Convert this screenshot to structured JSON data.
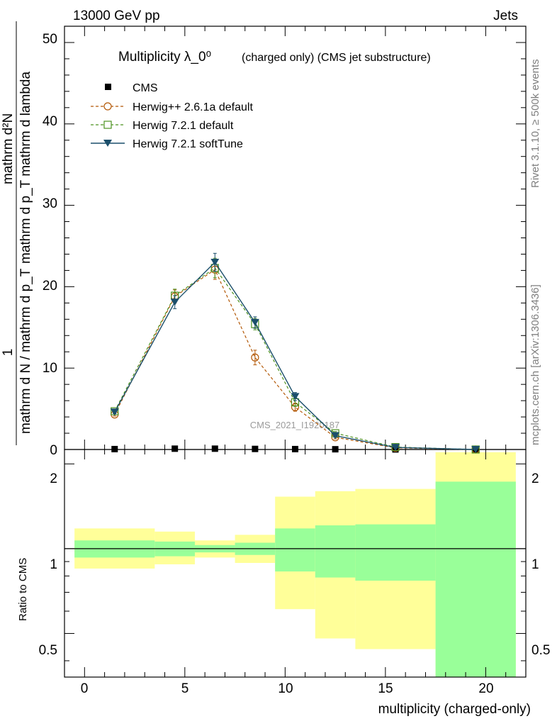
{
  "header": {
    "left_text": "13000 GeV pp",
    "right_text": "Jets"
  },
  "side_text": {
    "rivet": "Rivet 3.1.10, ≥ 500k events",
    "mcplots": "mcplots.cern.ch [arXiv:1306.3436]"
  },
  "watermark": "CMS_2021_I1920187",
  "colors": {
    "cms": "#000000",
    "herwigpp": "#b35806",
    "herwig721": "#4d9221",
    "softtune": "#1b4f6b",
    "band_inner": "#99ff99",
    "band_outer": "#ffff99"
  },
  "chart_data": [
    {
      "type": "line",
      "title": "Multiplicity λ_0⁰",
      "subtitle": "(charged only) (CMS jet substructure)",
      "ylabel_numerator": "1",
      "ylabel_denominator": "mathrm d N / mathrm d p_T",
      "ylabel_frac_numerator": "mathrm d²N",
      "ylabel_frac_denominator": "mathrm d p_T mathrm d lambda",
      "xlim": [
        -1,
        22
      ],
      "ylim": [
        0,
        52
      ],
      "yticks": [
        "10",
        "20",
        "30",
        "40",
        "50"
      ],
      "yticks_zero": "0",
      "x": [
        1.5,
        4.5,
        6.5,
        8.5,
        10.5,
        12.5,
        15.5,
        19.5
      ],
      "series": [
        {
          "name": "CMS",
          "marker": "square-filled",
          "style": "points",
          "y": [
            0.05,
            0.1,
            0.1,
            0.07,
            0.05,
            0.03,
            0.01,
            0.002
          ]
        },
        {
          "name": "Herwig++ 2.6.1a default",
          "marker": "circle-open",
          "style": "dashed",
          "y": [
            4.3,
            18.8,
            22.1,
            11.3,
            5.2,
            1.5,
            0.2,
            0.0
          ],
          "err": [
            0.2,
            0.8,
            1.2,
            0.9,
            0.5,
            0.2,
            0.05,
            0.0
          ]
        },
        {
          "name": "Herwig 7.2.1 default",
          "marker": "square-open",
          "style": "dashed",
          "y": [
            4.7,
            18.9,
            22.3,
            15.4,
            5.8,
            2.0,
            0.3,
            0.0
          ],
          "err": [
            0.2,
            0.8,
            1.2,
            0.7,
            0.5,
            0.2,
            0.05,
            0.0
          ]
        },
        {
          "name": "Herwig 7.2.1 softTune",
          "marker": "triangle-down-filled",
          "style": "solid",
          "y": [
            4.6,
            18.1,
            23.0,
            15.6,
            6.5,
            1.7,
            0.25,
            0.0
          ],
          "err": [
            0.2,
            0.8,
            1.1,
            0.7,
            0.5,
            0.2,
            0.05,
            0.0
          ]
        }
      ]
    },
    {
      "type": "area",
      "ylabel": "Ratio to CMS",
      "xlabel": "multiplicity (charged-only)",
      "xlim": [
        -1,
        22
      ],
      "ylim": [
        0.35,
        2.25
      ],
      "xticks": [
        "0",
        "5",
        "10",
        "15",
        "20"
      ],
      "yticks": [
        "0.5",
        "1",
        "2"
      ],
      "reference_line": 1,
      "bands": {
        "bins": [
          [
            -0.5,
            3.5
          ],
          [
            3.5,
            5.5
          ],
          [
            5.5,
            7.5
          ],
          [
            7.5,
            9.5
          ],
          [
            9.5,
            11.5
          ],
          [
            11.5,
            13.5
          ],
          [
            13.5,
            17.5
          ],
          [
            17.5,
            21.5
          ]
        ],
        "inner_low": [
          0.93,
          0.94,
          0.97,
          0.95,
          0.83,
          0.79,
          0.77,
          0.35
        ],
        "inner_high": [
          1.07,
          1.06,
          1.03,
          1.05,
          1.18,
          1.21,
          1.22,
          1.73
        ],
        "outer_low": [
          0.85,
          0.88,
          0.93,
          0.89,
          0.61,
          0.48,
          0.44,
          0.35
        ],
        "outer_high": [
          1.18,
          1.15,
          1.07,
          1.12,
          1.53,
          1.6,
          1.63,
          2.2
        ]
      }
    }
  ]
}
